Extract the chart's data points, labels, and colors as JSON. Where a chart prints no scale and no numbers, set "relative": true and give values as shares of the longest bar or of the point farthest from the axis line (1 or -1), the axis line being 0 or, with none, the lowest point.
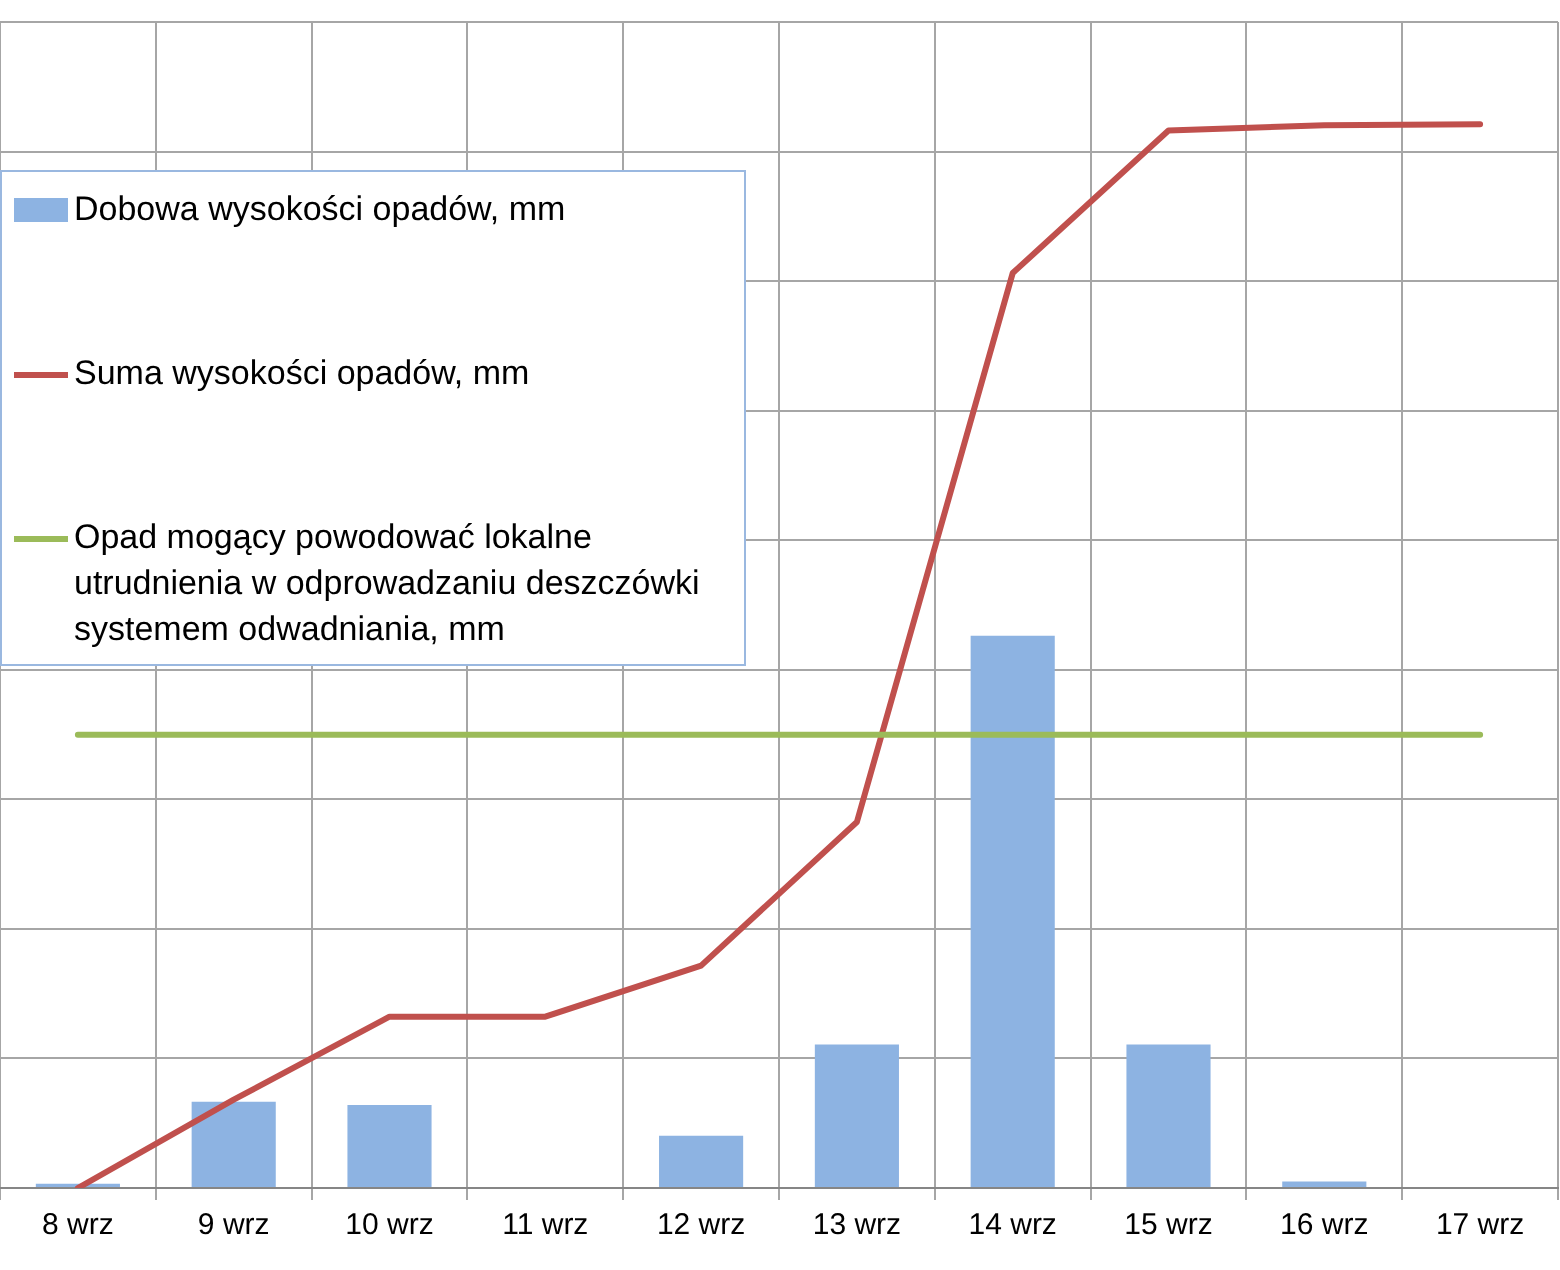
{
  "chart_data": {
    "type": "bar",
    "categories": [
      "8 wrz",
      "9 wrz",
      "10 wrz",
      "11 wrz",
      "12 wrz",
      "13 wrz",
      "14 wrz",
      "15 wrz",
      "16 wrz",
      "17 wrz"
    ],
    "series": [
      {
        "name": "Dobowa wysokości opadów, mm",
        "type": "bar",
        "color": "#8db3e2",
        "values": [
          0.004,
          0.081,
          0.078,
          0,
          0.049,
          0.135,
          0.519,
          0.135,
          0.006,
          0
        ]
      },
      {
        "name": "Suma wysokości opadów, mm",
        "type": "line",
        "color": "#c0504d",
        "values": [
          0,
          0.083,
          0.161,
          0.161,
          0.209,
          0.344,
          0.86,
          0.994,
          0.999,
          1
        ]
      },
      {
        "name": "Opad mogący powodować lokalne utrudnienia w odprowadzaniu deszczówki systemem odwadniania, mm",
        "type": "line",
        "color": "#9bbb59",
        "values": [
          0.426,
          0.426,
          0.426,
          0.426,
          0.426,
          0.426,
          0.426,
          0.426,
          0.426,
          0.426
        ]
      }
    ],
    "relative": true,
    "grid": true,
    "legend": "top left",
    "marker": "none",
    "line_style": "solid"
  }
}
